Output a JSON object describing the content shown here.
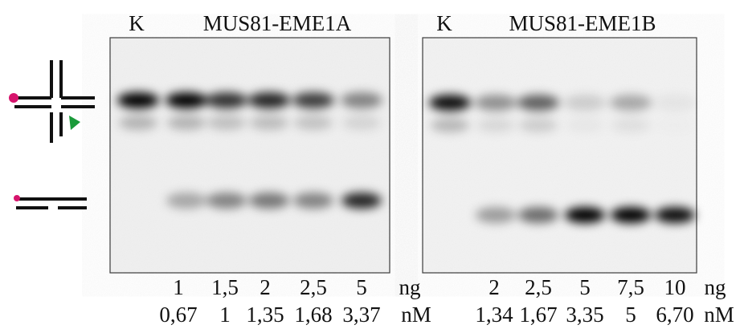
{
  "panels": [
    {
      "control": "K",
      "title": "MUS81-EME1A",
      "ng": [
        "1",
        "1,5",
        "2",
        "2,5",
        "5"
      ],
      "nM": [
        "0,67",
        "1",
        "1,35",
        "1,68",
        "3,37"
      ]
    },
    {
      "control": "K",
      "title": "MUS81-EME1B",
      "ng": [
        "2",
        "2,5",
        "5",
        "7,5",
        "10"
      ],
      "nM": [
        "1,34",
        "1,67",
        "3,35",
        "5",
        "6,70"
      ]
    }
  ],
  "units": {
    "ng": "ng",
    "nM": "nM"
  }
}
